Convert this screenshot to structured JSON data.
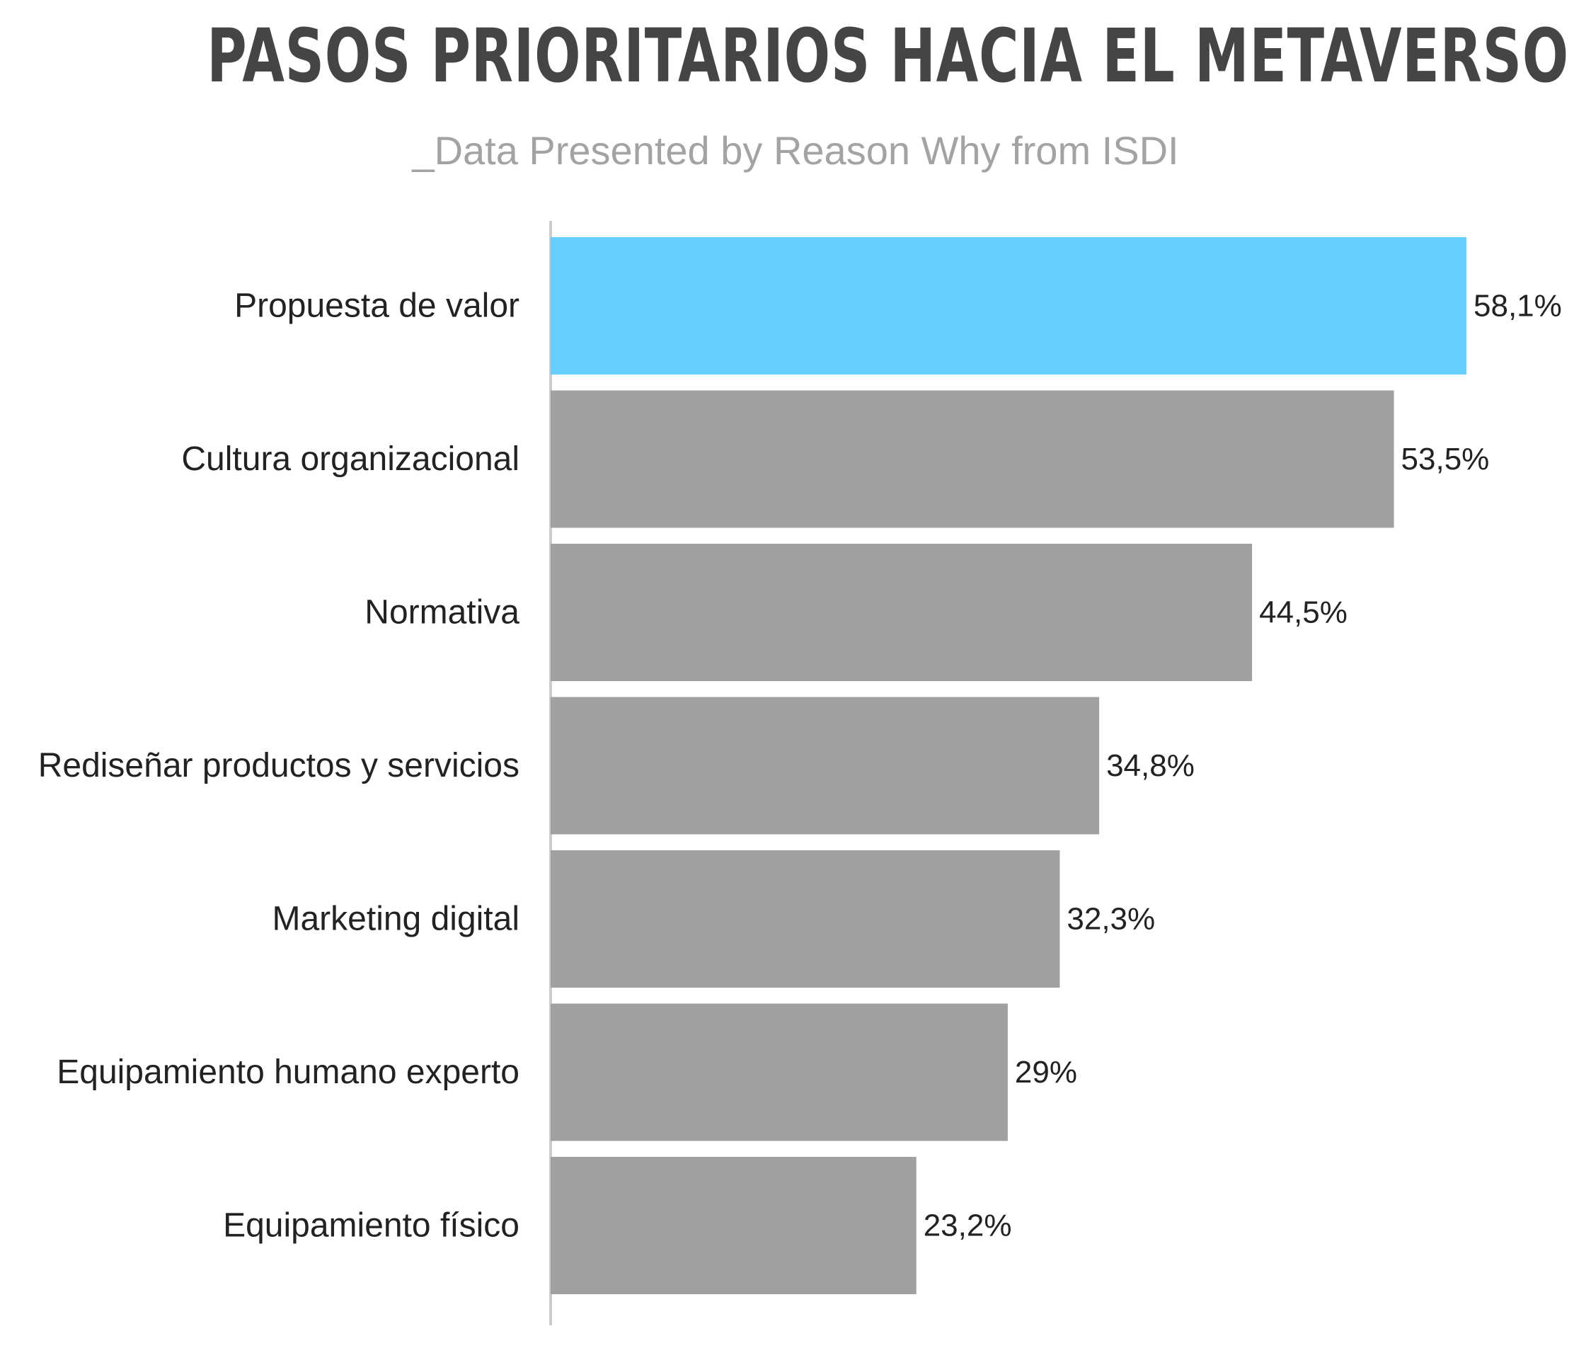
{
  "title": "PASOS PRIORITARIOS HACIA EL METAVERSO",
  "subtitle": "_Data Presented by Reason Why from ISDI",
  "colors": {
    "highlight": "#66cdff",
    "bar": "#a0a0a0",
    "axis": "#cccccc",
    "title": "#454545",
    "subtitle": "#a3a3a3"
  },
  "chart_data": {
    "type": "bar",
    "orientation": "horizontal",
    "categories": [
      "Propuesta de valor",
      "Cultura organizacional",
      "Normativa",
      "Rediseñar productos y servicios",
      "Marketing digital",
      "Equipamiento humano experto",
      "Equipamiento físico"
    ],
    "values": [
      58.1,
      53.5,
      44.5,
      34.8,
      32.3,
      29,
      23.2
    ],
    "value_labels": [
      "58,1%",
      "53,5%",
      "44,5%",
      "34,8%",
      "32,3%",
      "29%",
      "23,2%"
    ],
    "highlighted_index": 0,
    "xlim": [
      0,
      58.1
    ],
    "grid": false,
    "legend": "none"
  }
}
